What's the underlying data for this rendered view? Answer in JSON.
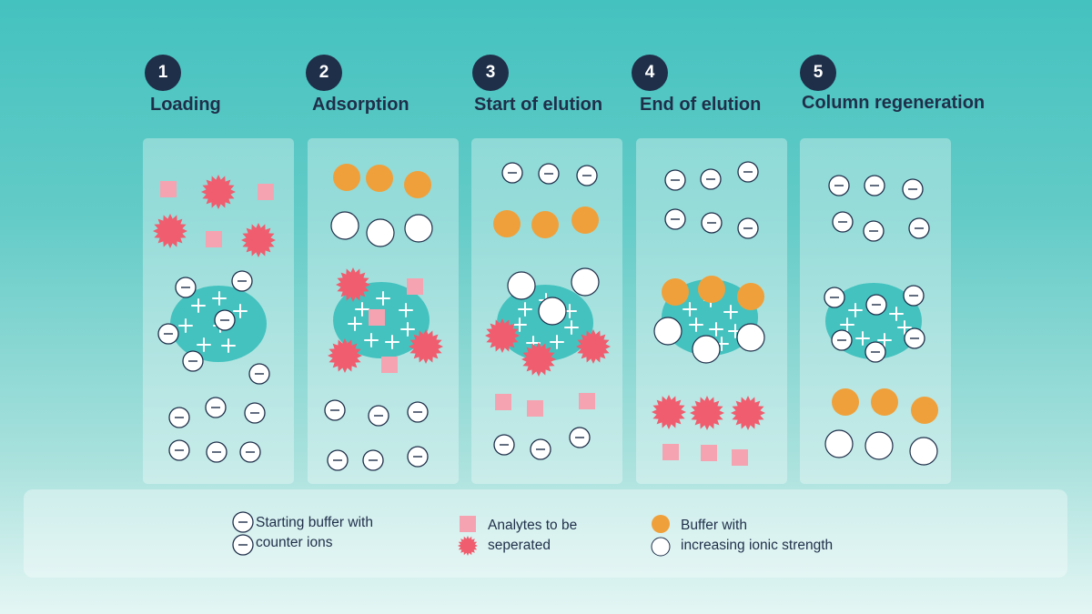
{
  "steps": [
    {
      "number": "1",
      "title": "Loading"
    },
    {
      "number": "2",
      "title": "Adsorption"
    },
    {
      "number": "3",
      "title": "Start of elution"
    },
    {
      "number": "4",
      "title": "End of elution"
    },
    {
      "number": "5",
      "title": "Column regeneration"
    }
  ],
  "legend": {
    "counter_ions_line1": "Starting buffer with",
    "counter_ions_line2": "counter ions",
    "analytes_line1": "Analytes to be",
    "analytes_line2": "seperated",
    "buffer_line1": "Buffer with",
    "buffer_line2": "increasing ionic strength"
  },
  "colors": {
    "background_top": "#44c2bf",
    "column": "#44c2bf",
    "analyte_square": "#f6a3b1",
    "analyte_star": "#ef5d6e",
    "buffer_orange": "#f0a03a",
    "counter_ion": "#ffffff",
    "title_text": "#1f2f4a"
  }
}
